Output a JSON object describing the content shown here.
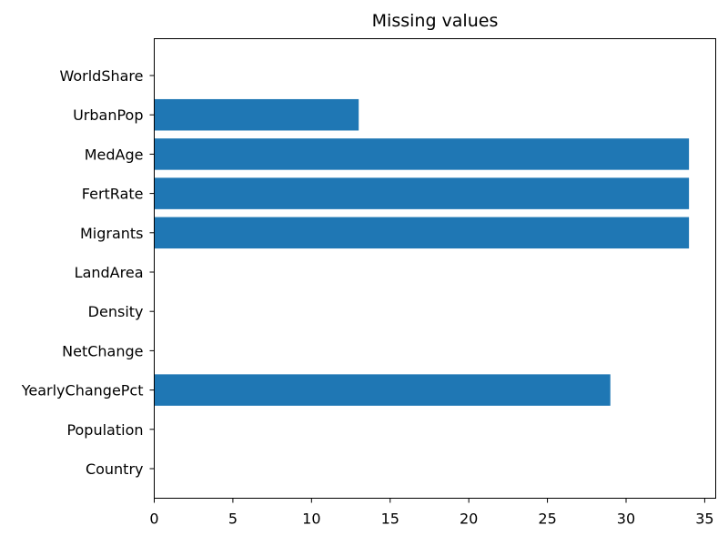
{
  "chart_data": {
    "type": "bar",
    "orientation": "horizontal",
    "title": "Missing values",
    "xlabel": "",
    "ylabel": "",
    "categories": [
      "Country",
      "Population",
      "YearlyChangePct",
      "NetChange",
      "Density",
      "LandArea",
      "Migrants",
      "FertRate",
      "MedAge",
      "UrbanPop",
      "WorldShare"
    ],
    "values": [
      0,
      0,
      29,
      0,
      0,
      0,
      34,
      34,
      34,
      13,
      0
    ],
    "xlim": [
      0,
      35.7
    ],
    "xticks": [
      0,
      5,
      10,
      15,
      20,
      25,
      30,
      35
    ],
    "grid": false,
    "color": "#1f77b4"
  }
}
